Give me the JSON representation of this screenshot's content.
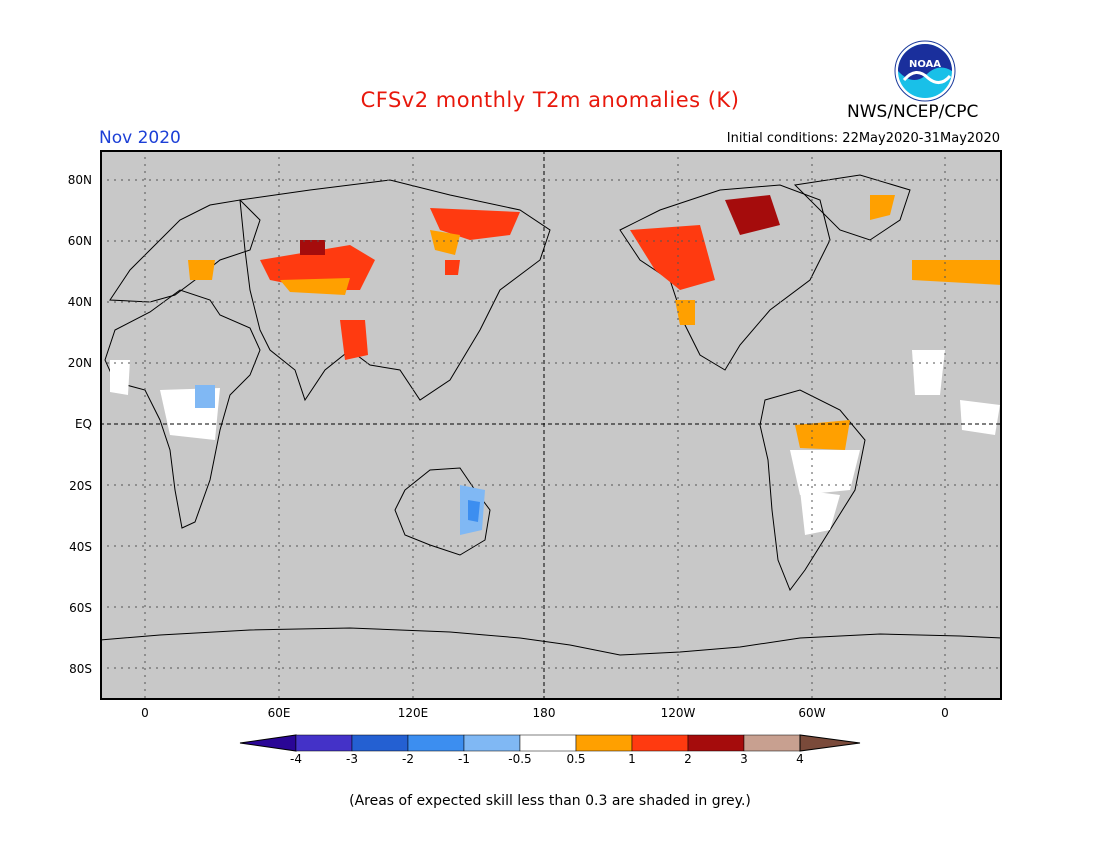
{
  "header": {
    "title": "CFSv2 monthly T2m anomalies (K)",
    "month": "Nov 2020",
    "initial_conditions": "Initial conditions: 22May2020-31May2020",
    "agency": "NWS/NCEP/CPC",
    "logo_text": "NOAA"
  },
  "map": {
    "y_axis_labels": [
      "80N",
      "60N",
      "40N",
      "20N",
      "EQ",
      "20S",
      "40S",
      "60S",
      "80S"
    ],
    "x_axis_labels": [
      "0",
      "60E",
      "120E",
      "180",
      "120W",
      "60W",
      "0"
    ],
    "longitude_range": [
      -20,
      360
    ],
    "latitude_range": [
      -90,
      90
    ]
  },
  "colorbar": {
    "tick_labels": [
      "-4",
      "-3",
      "-2",
      "-1",
      "-0.5",
      "0.5",
      "1",
      "2",
      "3",
      "4"
    ],
    "colors": [
      "#2a0696",
      "#4432c8",
      "#2460d2",
      "#3c8ef0",
      "#80b8f4",
      "#ffffff",
      "#ffa000",
      "#ff3a10",
      "#a50c0c",
      "#c8a090",
      "#7a4a3a"
    ]
  },
  "legend_colors": {
    "land": "#c8c8c8",
    "warm_weak": "#ffa000",
    "warm_mid": "#ff3a10",
    "warm_strong": "#a50c0c",
    "neutral": "#ffffff",
    "cool_weak": "#80b8f4",
    "cool_mid": "#3c8ef0"
  },
  "footer": {
    "note": "(Areas of expected skill less than 0.3 are shaded in grey.)"
  }
}
